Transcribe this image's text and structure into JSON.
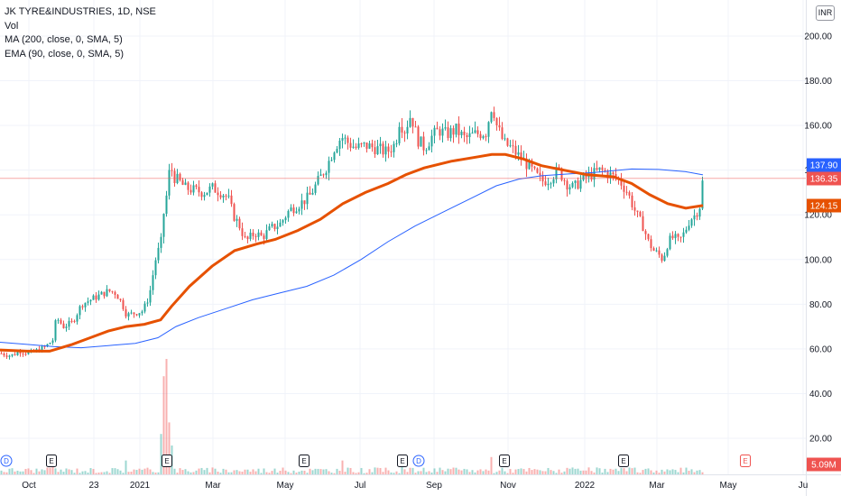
{
  "legend": {
    "title": "JK TYRE&INDUSTRIES, 1D, NSE",
    "vol": "Vol",
    "ma": "MA (200, close, 0, SMA, 5)",
    "ema": "EMA (90, close, 0, SMA, 5)"
  },
  "currency": "INR",
  "colors": {
    "up": "#26a69a",
    "down": "#ef5350",
    "ma": "#2962ff",
    "ema": "#e65100",
    "grid": "#f0f3fa",
    "price_line": "#ef5350"
  },
  "chart_data": {
    "type": "candlestick",
    "title": "JK TYRE&INDUSTRIES, 1D, NSE",
    "y_ticks": [
      "20.00",
      "40.00",
      "60.00",
      "80.00",
      "100.00",
      "120.00",
      "140.00",
      "160.00",
      "180.00",
      "200.00"
    ],
    "ylim": [
      12,
      214
    ],
    "x_ticks": [
      "Oct",
      "23",
      "2021",
      "Mar",
      "May",
      "Jul",
      "Sep",
      "Nov",
      "2022",
      "Mar",
      "May",
      "Ju"
    ],
    "tags": [
      {
        "label": "137.90",
        "value": 137.9,
        "color": "#2962ff"
      },
      {
        "label": "136.35",
        "value": 136.35,
        "color": "#ef5350"
      },
      {
        "label": "124.15",
        "value": 124.15,
        "color": "#e65100"
      },
      {
        "label": "5.09M",
        "value": 0,
        "color": "#ef5350"
      }
    ],
    "price_path": [
      [
        0,
        58
      ],
      [
        12,
        57
      ],
      [
        22,
        59
      ],
      [
        32,
        58
      ],
      [
        45,
        60
      ],
      [
        50,
        61
      ],
      [
        58,
        64
      ],
      [
        62,
        74
      ],
      [
        70,
        70
      ],
      [
        80,
        72
      ],
      [
        90,
        80
      ],
      [
        100,
        82
      ],
      [
        110,
        84
      ],
      [
        120,
        86
      ],
      [
        128,
        85
      ],
      [
        135,
        80
      ],
      [
        140,
        75
      ],
      [
        148,
        76
      ],
      [
        158,
        77
      ],
      [
        165,
        84
      ],
      [
        172,
        100
      ],
      [
        178,
        108
      ],
      [
        182,
        125
      ],
      [
        185,
        130
      ],
      [
        188,
        143
      ],
      [
        192,
        137
      ],
      [
        198,
        135
      ],
      [
        205,
        132
      ],
      [
        215,
        131
      ],
      [
        225,
        130
      ],
      [
        235,
        132
      ],
      [
        245,
        130
      ],
      [
        252,
        128
      ],
      [
        258,
        120
      ],
      [
        265,
        115
      ],
      [
        272,
        108
      ],
      [
        282,
        112
      ],
      [
        290,
        110
      ],
      [
        300,
        114
      ],
      [
        310,
        116
      ],
      [
        320,
        122
      ],
      [
        332,
        125
      ],
      [
        342,
        128
      ],
      [
        352,
        135
      ],
      [
        362,
        142
      ],
      [
        370,
        150
      ],
      [
        378,
        155
      ],
      [
        386,
        152
      ],
      [
        394,
        150
      ],
      [
        405,
        151
      ],
      [
        415,
        150
      ],
      [
        428,
        148
      ],
      [
        438,
        152
      ],
      [
        442,
        162
      ],
      [
        448,
        158
      ],
      [
        455,
        165
      ],
      [
        462,
        154
      ],
      [
        470,
        150
      ],
      [
        478,
        155
      ],
      [
        486,
        158
      ],
      [
        494,
        156
      ],
      [
        505,
        158
      ],
      [
        515,
        154
      ],
      [
        525,
        156
      ],
      [
        538,
        157
      ],
      [
        545,
        170
      ],
      [
        550,
        160
      ],
      [
        558,
        152
      ],
      [
        566,
        150
      ],
      [
        575,
        146
      ],
      [
        585,
        142
      ],
      [
        593,
        138
      ],
      [
        600,
        135
      ],
      [
        608,
        136
      ],
      [
        618,
        140
      ],
      [
        628,
        134
      ],
      [
        635,
        132
      ],
      [
        645,
        136
      ],
      [
        655,
        138
      ],
      [
        665,
        140
      ],
      [
        675,
        138
      ],
      [
        685,
        136
      ],
      [
        695,
        130
      ],
      [
        705,
        120
      ],
      [
        712,
        115
      ],
      [
        718,
        108
      ],
      [
        724,
        104
      ],
      [
        730,
        102
      ],
      [
        734,
        100
      ],
      [
        740,
        108
      ],
      [
        746,
        110
      ],
      [
        752,
        108
      ],
      [
        758,
        112
      ],
      [
        764,
        118
      ],
      [
        770,
        120
      ],
      [
        775,
        124
      ],
      [
        779,
        138
      ]
    ],
    "ma_200": [
      [
        0,
        63
      ],
      [
        30,
        62
      ],
      [
        60,
        61
      ],
      [
        90,
        60.5
      ],
      [
        120,
        61.5
      ],
      [
        150,
        62.5
      ],
      [
        175,
        65
      ],
      [
        195,
        70
      ],
      [
        220,
        74
      ],
      [
        250,
        78
      ],
      [
        280,
        82
      ],
      [
        310,
        85
      ],
      [
        340,
        88
      ],
      [
        370,
        93
      ],
      [
        400,
        100
      ],
      [
        430,
        108
      ],
      [
        460,
        115
      ],
      [
        490,
        121
      ],
      [
        520,
        127
      ],
      [
        550,
        133
      ],
      [
        575,
        136
      ],
      [
        600,
        137.5
      ],
      [
        630,
        138.3
      ],
      [
        660,
        139
      ],
      [
        700,
        140.5
      ],
      [
        730,
        140.3
      ],
      [
        760,
        139.3
      ],
      [
        779,
        137.9
      ]
    ],
    "ema_90": [
      [
        0,
        59.5
      ],
      [
        30,
        59
      ],
      [
        55,
        59
      ],
      [
        80,
        62
      ],
      [
        100,
        65
      ],
      [
        120,
        68
      ],
      [
        140,
        70
      ],
      [
        160,
        71
      ],
      [
        178,
        73
      ],
      [
        190,
        79
      ],
      [
        210,
        88
      ],
      [
        235,
        97
      ],
      [
        260,
        104
      ],
      [
        285,
        107
      ],
      [
        305,
        109
      ],
      [
        330,
        113
      ],
      [
        355,
        118
      ],
      [
        380,
        125
      ],
      [
        405,
        130
      ],
      [
        430,
        134
      ],
      [
        450,
        138
      ],
      [
        470,
        141
      ],
      [
        500,
        144
      ],
      [
        530,
        146
      ],
      [
        545,
        147
      ],
      [
        560,
        147
      ],
      [
        580,
        145
      ],
      [
        600,
        142
      ],
      [
        625,
        140
      ],
      [
        650,
        138
      ],
      [
        680,
        137
      ],
      [
        700,
        134
      ],
      [
        720,
        129
      ],
      [
        740,
        125
      ],
      [
        760,
        123
      ],
      [
        779,
        124.15
      ]
    ],
    "volume_spikes": [
      [
        58,
        0.1
      ],
      [
        140,
        0.12
      ],
      [
        178,
        0.35
      ],
      [
        181,
        0.85
      ],
      [
        184,
        1.0
      ],
      [
        186,
        0.45
      ],
      [
        190,
        0.25
      ],
      [
        380,
        0.12
      ],
      [
        445,
        0.15
      ],
      [
        545,
        0.15
      ],
      [
        780,
        0.12
      ]
    ],
    "volume_max_px": 128
  },
  "events": [
    {
      "x": 7,
      "label": "D",
      "type": "dividend"
    },
    {
      "x": 57,
      "label": "E",
      "type": "earnings"
    },
    {
      "x": 185,
      "label": "E",
      "type": "earnings"
    },
    {
      "x": 337,
      "label": "E",
      "type": "earnings"
    },
    {
      "x": 446,
      "label": "E",
      "type": "earnings"
    },
    {
      "x": 464,
      "label": "D",
      "type": "dividend"
    },
    {
      "x": 559,
      "label": "E",
      "type": "earnings"
    },
    {
      "x": 691,
      "label": "E",
      "type": "earnings"
    },
    {
      "x": 826,
      "label": "E",
      "type": "earnings-upcoming"
    }
  ]
}
